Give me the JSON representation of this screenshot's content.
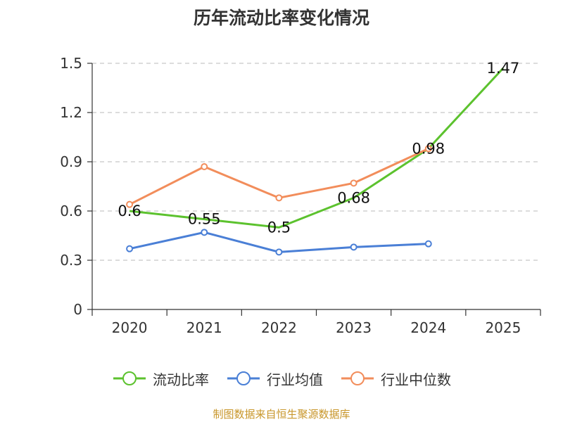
{
  "page": {
    "title": "历年流动比率变化情况",
    "footer": "制图数据来自恒生聚源数据库"
  },
  "chart_data": {
    "type": "line",
    "title": "历年流动比率变化情况",
    "xlabel": "",
    "ylabel": "",
    "categories": [
      "2020",
      "2021",
      "2022",
      "2023",
      "2024",
      "2025"
    ],
    "y_ticks": [
      "0",
      "0.3",
      "0.6",
      "0.9",
      "1.2",
      "1.5"
    ],
    "ylim": [
      0,
      1.5
    ],
    "grid": true,
    "legend_position": "bottom",
    "series": [
      {
        "name": "流动比率",
        "color": "#5cc22e",
        "values": [
          0.6,
          0.55,
          0.5,
          0.68,
          0.98,
          1.47
        ],
        "labels": [
          "0.6",
          "0.55",
          "0.5",
          "0.68",
          "0.98",
          "1.47"
        ],
        "show_labels": true,
        "show_markers": false
      },
      {
        "name": "行业均值",
        "color": "#4a7fd6",
        "values": [
          0.37,
          0.47,
          0.35,
          0.38,
          0.4,
          null
        ],
        "show_labels": false,
        "show_markers": true
      },
      {
        "name": "行业中位数",
        "color": "#f28d5b",
        "values": [
          0.64,
          0.87,
          0.68,
          0.77,
          0.98,
          null
        ],
        "show_labels": false,
        "show_markers": true
      }
    ]
  }
}
